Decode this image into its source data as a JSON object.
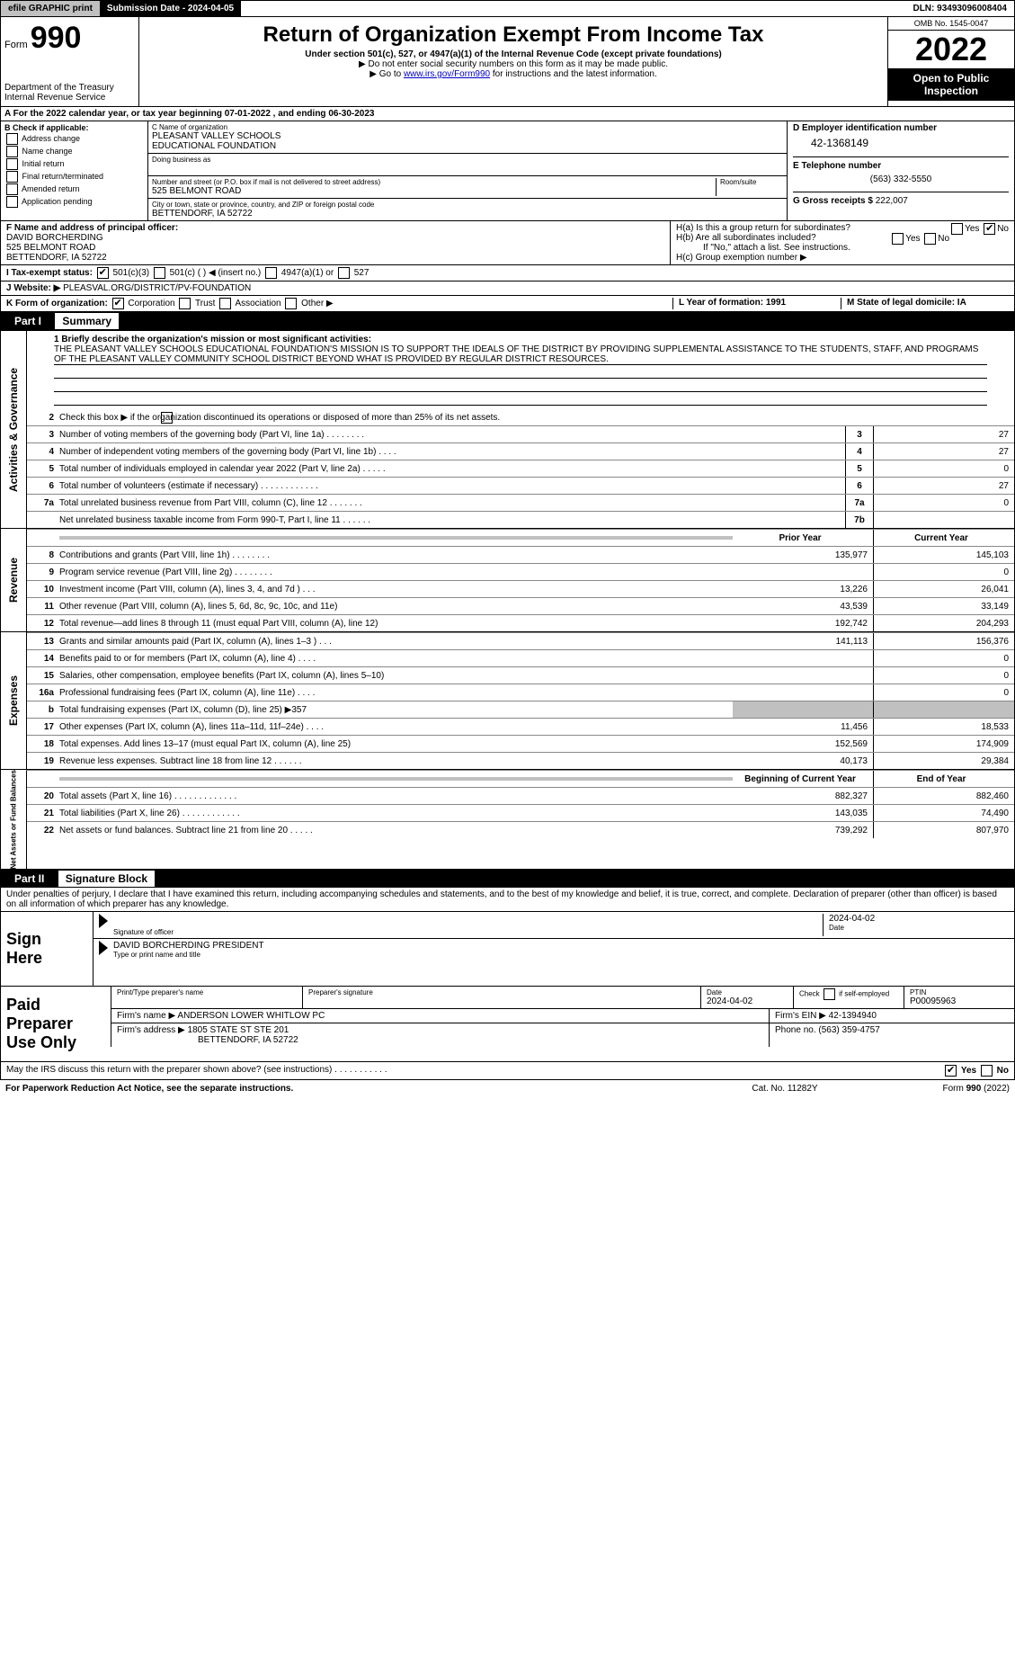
{
  "top": {
    "efile": "efile GRAPHIC print",
    "submission": "Submission Date - 2024-04-05",
    "dln": "DLN: 93493096008404"
  },
  "header": {
    "form_prefix": "Form",
    "form_num": "990",
    "title": "Return of Organization Exempt From Income Tax",
    "subtitle": "Under section 501(c), 527, or 4947(a)(1) of the Internal Revenue Code (except private foundations)",
    "ssn_note": "▶ Do not enter social security numbers on this form as it may be made public.",
    "goto": "▶ Go to ",
    "goto_link": "www.irs.gov/Form990",
    "goto_suffix": " for instructions and the latest information.",
    "dept": "Department of the Treasury",
    "irs": "Internal Revenue Service",
    "omb": "OMB No. 1545-0047",
    "year": "2022",
    "inspect": "Open to Public Inspection"
  },
  "a": {
    "text": "A For the 2022 calendar year, or tax year beginning 07-01-2022    , and ending 06-30-2023"
  },
  "b": {
    "label": "B Check if applicable:",
    "opts": [
      "Address change",
      "Name change",
      "Initial return",
      "Final return/terminated",
      "Amended return",
      "Application pending"
    ]
  },
  "c": {
    "name_label": "C Name of organization",
    "name1": "PLEASANT VALLEY SCHOOLS",
    "name2": "EDUCATIONAL FOUNDATION",
    "dba": "Doing business as",
    "addr_label": "Number and street (or P.O. box if mail is not delivered to street address)",
    "room": "Room/suite",
    "addr": "525 BELMONT ROAD",
    "city_label": "City or town, state or province, country, and ZIP or foreign postal code",
    "city": "BETTENDORF, IA  52722"
  },
  "d": {
    "label": "D Employer identification number",
    "ein": "42-1368149"
  },
  "e": {
    "label": "E Telephone number",
    "phone": "(563) 332-5550"
  },
  "g": {
    "label": "G Gross receipts $",
    "amount": "222,007"
  },
  "f": {
    "label": "F Name and address of principal officer:",
    "name": "DAVID BORCHERDING",
    "addr": "525 BELMONT ROAD",
    "city": "BETTENDORF, IA  52722"
  },
  "h": {
    "a": "H(a)  Is this a group return for subordinates?",
    "b": "H(b)  Are all subordinates included?",
    "b_note": "If \"No,\" attach a list. See instructions.",
    "c": "H(c)  Group exemption number ▶",
    "yes": "Yes",
    "no": "No"
  },
  "i": {
    "label": "I  Tax-exempt status:",
    "o1": "501(c)(3)",
    "o2": "501(c) (   ) ◀ (insert no.)",
    "o3": "4947(a)(1) or",
    "o4": "527"
  },
  "j": {
    "label": "J  Website: ▶",
    "val": "PLEASVAL.ORG/DISTRICT/PV-FOUNDATION"
  },
  "k": {
    "label": "K Form of organization:",
    "o1": "Corporation",
    "o2": "Trust",
    "o3": "Association",
    "o4": "Other ▶"
  },
  "l": {
    "label": "L Year of formation: 1991"
  },
  "m": {
    "label": "M State of legal domicile: IA"
  },
  "parts": {
    "p1": "Part I",
    "p1t": "Summary",
    "p2": "Part II",
    "p2t": "Signature Block"
  },
  "summary": {
    "tabs": {
      "ag": "Activities & Governance",
      "rev": "Revenue",
      "exp": "Expenses",
      "na": "Net Assets or Fund Balances"
    },
    "l1": "1  Briefly describe the organization's mission or most significant activities:",
    "mission": "THE PLEASANT VALLEY SCHOOLS EDUCATIONAL FOUNDATION'S MISSION IS TO SUPPORT THE IDEALS OF THE DISTRICT BY PROVIDING SUPPLEMENTAL ASSISTANCE TO THE STUDENTS, STAFF, AND PROGRAMS OF THE PLEASANT VALLEY COMMUNITY SCHOOL DISTRICT BEYOND WHAT IS PROVIDED BY REGULAR DISTRICT RESOURCES.",
    "l2": "Check this box ▶       if the organization discontinued its operations or disposed of more than 25% of its net assets.",
    "hdr_prior": "Prior Year",
    "hdr_curr": "Current Year",
    "hdr_begin": "Beginning of Current Year",
    "hdr_end": "End of Year",
    "rows_ag": [
      {
        "n": "3",
        "t": "Number of voting members of the governing body (Part VI, line 1a)   .    .    .    .    .    .    .    .",
        "b": "3",
        "v": "27"
      },
      {
        "n": "4",
        "t": "Number of independent voting members of the governing body (Part VI, line 1b)   .    .    .    .",
        "b": "4",
        "v": "27"
      },
      {
        "n": "5",
        "t": "Total number of individuals employed in calendar year 2022 (Part V, line 2a)   .    .    .    .    .",
        "b": "5",
        "v": "0"
      },
      {
        "n": "6",
        "t": "Total number of volunteers (estimate if necessary)    .    .    .    .    .    .    .    .    .    .    .    .",
        "b": "6",
        "v": "27"
      },
      {
        "n": "7a",
        "t": "Total unrelated business revenue from Part VIII, column (C), line 12    .    .    .    .    .    .    .",
        "b": "7a",
        "v": "0"
      },
      {
        "n": "",
        "t": "Net unrelated business taxable income from Form 990-T, Part I, line 11    .    .    .    .    .    .",
        "b": "7b",
        "v": ""
      }
    ],
    "rows_rev": [
      {
        "n": "8",
        "t": "Contributions and grants (Part VIII, line 1h)    .    .    .    .    .    .    .    .",
        "p": "135,977",
        "c": "145,103"
      },
      {
        "n": "9",
        "t": "Program service revenue (Part VIII, line 2g)   .    .    .    .    .    .    .    .",
        "p": "",
        "c": "0"
      },
      {
        "n": "10",
        "t": "Investment income (Part VIII, column (A), lines 3, 4, and 7d )   .    .    .",
        "p": "13,226",
        "c": "26,041"
      },
      {
        "n": "11",
        "t": "Other revenue (Part VIII, column (A), lines 5, 6d, 8c, 9c, 10c, and 11e)",
        "p": "43,539",
        "c": "33,149"
      },
      {
        "n": "12",
        "t": "Total revenue—add lines 8 through 11 (must equal Part VIII, column (A), line 12)",
        "p": "192,742",
        "c": "204,293"
      }
    ],
    "rows_exp": [
      {
        "n": "13",
        "t": "Grants and similar amounts paid (Part IX, column (A), lines 1–3 )   .    .    .",
        "p": "141,113",
        "c": "156,376"
      },
      {
        "n": "14",
        "t": "Benefits paid to or for members (Part IX, column (A), line 4)   .    .    .    .",
        "p": "",
        "c": "0"
      },
      {
        "n": "15",
        "t": "Salaries, other compensation, employee benefits (Part IX, column (A), lines 5–10)",
        "p": "",
        "c": "0"
      },
      {
        "n": "16a",
        "t": "Professional fundraising fees (Part IX, column (A), line 11e)   .    .    .    .",
        "p": "",
        "c": "0"
      },
      {
        "n": "b",
        "t": "Total fundraising expenses (Part IX, column (D), line 25) ▶357",
        "p": "",
        "c": "",
        "shade": true
      },
      {
        "n": "17",
        "t": "Other expenses (Part IX, column (A), lines 11a–11d, 11f–24e)   .    .    .    .",
        "p": "11,456",
        "c": "18,533"
      },
      {
        "n": "18",
        "t": "Total expenses. Add lines 13–17 (must equal Part IX, column (A), line 25)",
        "p": "152,569",
        "c": "174,909"
      },
      {
        "n": "19",
        "t": "Revenue less expenses. Subtract line 18 from line 12   .    .    .    .    .    .",
        "p": "40,173",
        "c": "29,384"
      }
    ],
    "rows_na": [
      {
        "n": "20",
        "t": "Total assets (Part X, line 16)   .    .    .    .    .    .    .    .    .    .    .    .    .",
        "p": "882,327",
        "c": "882,460"
      },
      {
        "n": "21",
        "t": "Total liabilities (Part X, line 26)   .    .    .    .    .    .    .    .    .    .    .    .",
        "p": "143,035",
        "c": "74,490"
      },
      {
        "n": "22",
        "t": "Net assets or fund balances. Subtract line 21 from line 20   .    .    .    .    .",
        "p": "739,292",
        "c": "807,970"
      }
    ]
  },
  "sig": {
    "penalties": "Under penalties of perjury, I declare that I have examined this return, including accompanying schedules and statements, and to the best of my knowledge and belief, it is true, correct, and complete. Declaration of preparer (other than officer) is based on all information of which preparer has any knowledge.",
    "sign": "Sign",
    "here": "Here",
    "sig_officer": "Signature of officer",
    "date": "Date",
    "date_val": "2024-04-02",
    "name_title": "DAVID BORCHERDING  PRESIDENT",
    "type_name": "Type or print name and title"
  },
  "paid": {
    "label1": "Paid",
    "label2": "Preparer",
    "label3": "Use Only",
    "h_name": "Print/Type preparer's name",
    "h_sig": "Preparer's signature",
    "h_date": "Date",
    "date_val": "2024-04-02",
    "h_self": "Check         if self-employed",
    "h_ptin": "PTIN",
    "ptin": "P00095963",
    "firm_name_l": "Firm's name    ▶",
    "firm_name": "ANDERSON LOWER WHITLOW PC",
    "firm_ein_l": "Firm's EIN ▶",
    "firm_ein": "42-1394940",
    "firm_addr_l": "Firm's address ▶",
    "firm_addr1": "1805 STATE ST STE 201",
    "firm_addr2": "BETTENDORF, IA  52722",
    "phone_l": "Phone no.",
    "phone": "(563) 359-4757"
  },
  "footer": {
    "discuss": "May the IRS discuss this return with the preparer shown above? (see instructions)   .    .    .    .    .    .    .    .    .    .    .",
    "yes": "Yes",
    "no": "No",
    "pra": "For Paperwork Reduction Act Notice, see the separate instructions.",
    "cat": "Cat. No. 11282Y",
    "form": "Form 990 (2022)"
  }
}
